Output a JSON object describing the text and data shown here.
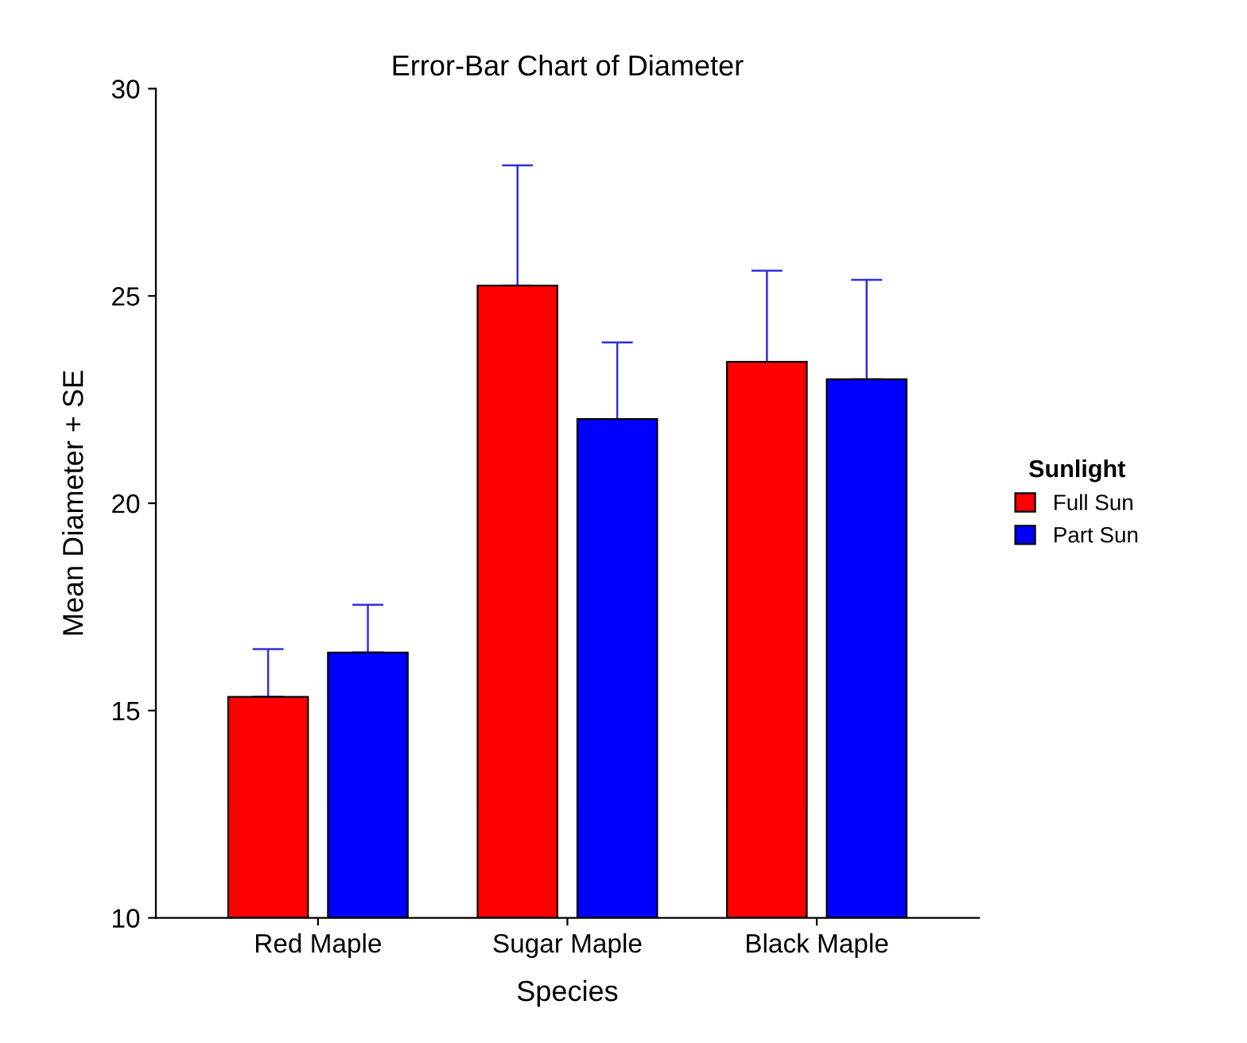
{
  "chart_data": {
    "type": "bar",
    "title": "Error-Bar Chart of Diameter",
    "xlabel": "Species",
    "ylabel": "Mean Diameter + SE",
    "legend_title": "Sunlight",
    "categories": [
      "Red Maple",
      "Sugar Maple",
      "Black Maple"
    ],
    "series": [
      {
        "name": "Full Sun",
        "color": "#ff0000",
        "values": [
          15.33,
          25.25,
          23.41
        ],
        "errors": [
          [
            15.33,
            16.48
          ],
          [
            25.25,
            28.15
          ],
          [
            23.41,
            25.61
          ]
        ]
      },
      {
        "name": "Part Sun",
        "color": "#0000ff",
        "values": [
          16.4,
          22.03,
          22.99
        ],
        "errors": [
          [
            16.4,
            17.55
          ],
          [
            22.03,
            23.88
          ],
          [
            22.99,
            25.39
          ]
        ]
      }
    ],
    "ylim": [
      10,
      30
    ],
    "yticks": [
      10,
      15,
      20,
      25,
      30
    ],
    "grid": false,
    "legend": "right"
  }
}
